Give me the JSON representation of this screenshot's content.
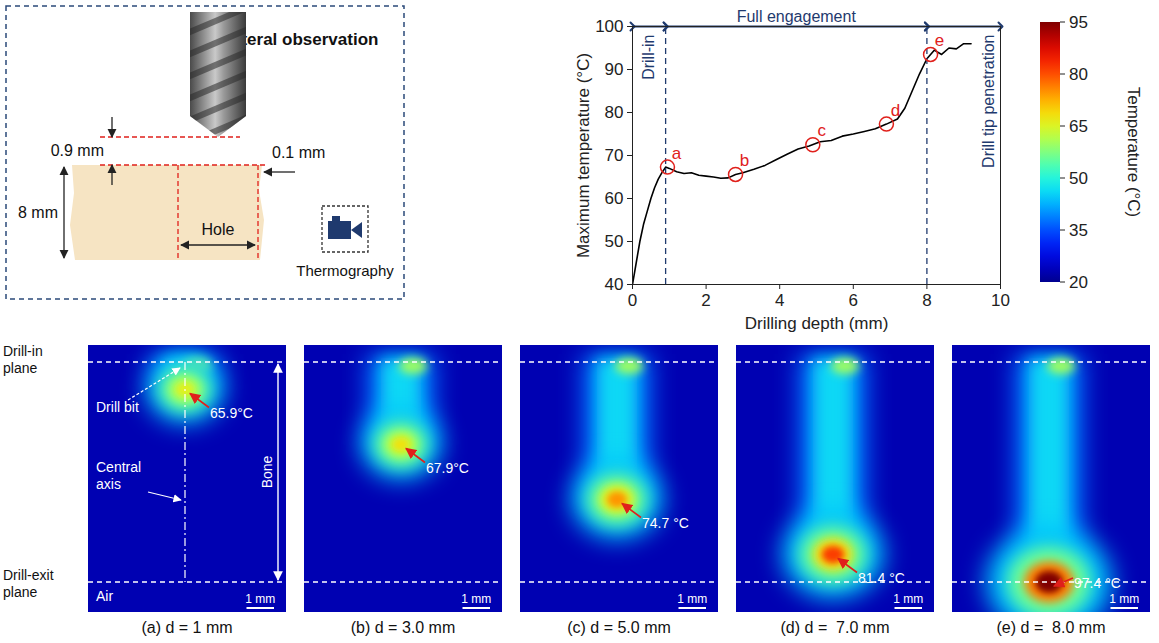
{
  "chart_data": {
    "type": "line",
    "x_label": "Drilling depth (mm)",
    "y_label": "Maximum temperature (°C)",
    "x": [
      0,
      0.1,
      0.2,
      0.3,
      0.4,
      0.5,
      0.6,
      0.7,
      0.8,
      0.9,
      1.0,
      1.2,
      1.4,
      1.6,
      1.8,
      2.0,
      2.2,
      2.4,
      2.6,
      2.8,
      3.0,
      3.3,
      3.6,
      3.9,
      4.2,
      4.5,
      4.8,
      5.1,
      5.4,
      5.7,
      6.0,
      6.3,
      6.6,
      6.9,
      7.2,
      7.4,
      7.6,
      7.8,
      8.0,
      8.2,
      8.4,
      8.6,
      8.8,
      9.0,
      9.2
    ],
    "values": [
      40,
      45,
      50,
      54,
      57,
      60,
      62.5,
      64.5,
      66,
      67.3,
      67,
      66.2,
      65.8,
      66,
      65.4,
      65.2,
      65,
      64.7,
      64.8,
      65.6,
      66,
      66.8,
      67.7,
      69,
      70.3,
      71.5,
      72.2,
      73.2,
      73.5,
      74.5,
      75,
      75.6,
      76.2,
      77.3,
      78.5,
      81,
      85,
      89,
      92.5,
      94.5,
      93.5,
      95,
      94.8,
      96,
      96
    ],
    "color": "#000000",
    "xlim": [
      0,
      10
    ],
    "ylim": [
      40,
      100
    ],
    "xticks": [
      0,
      2,
      4,
      6,
      8,
      10
    ],
    "yticks": [
      40,
      50,
      60,
      70,
      80,
      90,
      100
    ],
    "annotations": [
      {
        "label": "a",
        "x": 0.95,
        "y": 67.3
      },
      {
        "label": "b",
        "x": 2.8,
        "y": 65.6
      },
      {
        "label": "c",
        "x": 4.9,
        "y": 72.5
      },
      {
        "label": "d",
        "x": 6.9,
        "y": 77.3
      },
      {
        "label": "e",
        "x": 8.1,
        "y": 93.5
      }
    ],
    "phases": [
      {
        "label": "Drill-in",
        "x1": 0,
        "x2": 0.9
      },
      {
        "label": "Full engagement",
        "x1": 0.9,
        "x2": 8.0
      },
      {
        "label": "Drill tip penetration",
        "x1": 8.0,
        "x2": 10
      }
    ],
    "colorbar": {
      "label": "Temperature (°C)",
      "range": [
        20,
        95
      ],
      "ticks": [
        20,
        35,
        50,
        65,
        80,
        95
      ]
    }
  },
  "schematic": {
    "title": "Lateral observation",
    "gap": "0.9 mm",
    "thickness": "8 mm",
    "wall": "0.1 mm",
    "hole": "Hole",
    "camera": "Thermography"
  },
  "thermal_images": {
    "row_labels": {
      "drill_in": "Drill-in plane",
      "drill_exit": "Drill-exit plane"
    },
    "labels": {
      "drill_bit": "Drill bit",
      "central_axis": "Central axis",
      "bone": "Bone",
      "air": "Air"
    },
    "scale_bar": {
      "label": "1 mm",
      "value": 1
    },
    "panels": [
      {
        "caption": "(a) d = 1 mm",
        "depth": 1,
        "max_temp": 65.9,
        "temp_label": "65.9°C"
      },
      {
        "caption": "(b) d = 3.0 mm",
        "depth": 3.0,
        "max_temp": 67.9,
        "temp_label": "67.9°C"
      },
      {
        "caption": "(c) d = 5.0 mm",
        "depth": 5.0,
        "max_temp": 74.7,
        "temp_label": "74.7 °C"
      },
      {
        "caption": "(d) d =  7.0 mm",
        "depth": 7.0,
        "max_temp": 81.4,
        "temp_label": "81.4 °C"
      },
      {
        "caption": "(e) d =  8.0 mm",
        "depth": 8.0,
        "max_temp": 97.4,
        "temp_label": "97.4 °C"
      }
    ]
  }
}
